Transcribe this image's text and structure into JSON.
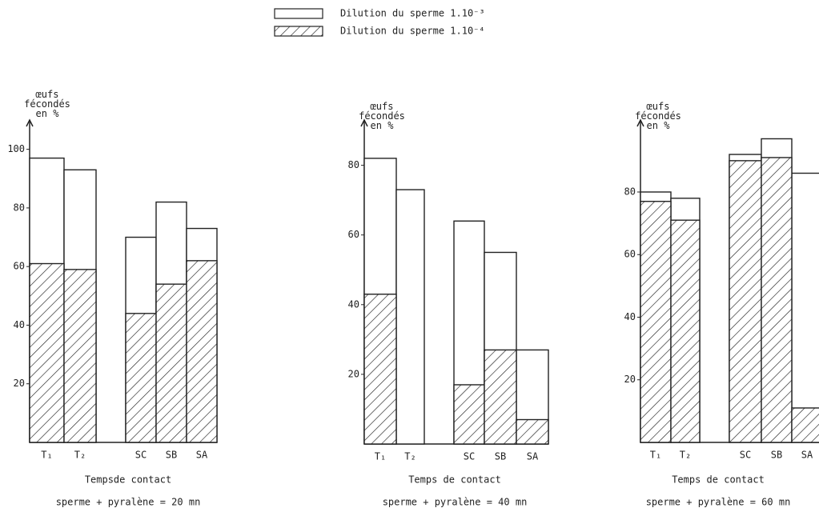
{
  "chart_data": [
    {
      "type": "bar",
      "overlap": true,
      "ylabel": "œufs fécondés en %",
      "xlabel": [
        "Tempsde contact",
        "sperme + pyralène = 20 mn"
      ],
      "categories": [
        "T₁",
        "T₂",
        "SC",
        "SB",
        "SA"
      ],
      "series": [
        {
          "name": "Dilution du sperme 1.10⁻³",
          "color": "#ffffff",
          "values": [
            97,
            93,
            70,
            82,
            73
          ]
        },
        {
          "name": "Dilution du sperme 1.10⁻⁴",
          "color": "#222222",
          "hatch": true,
          "values": [
            61,
            59,
            44,
            54,
            62
          ]
        }
      ],
      "ylim": [
        0,
        110
      ],
      "yticks": [
        20,
        40,
        60,
        80,
        100
      ]
    },
    {
      "type": "bar",
      "overlap": true,
      "ylabel": "œufs fécondés en %",
      "xlabel": [
        "Temps de contact",
        "sperme + pyralène = 40 mn"
      ],
      "categories": [
        "T₁",
        "T₂",
        "SC",
        "SB",
        "SA"
      ],
      "series": [
        {
          "name": "Dilution du sperme 1.10⁻³",
          "color": "#ffffff",
          "values": [
            82,
            73,
            64,
            55,
            27
          ]
        },
        {
          "name": "Dilution du sperme 1.10⁻⁴",
          "color": "#222222",
          "hatch": true,
          "values": [
            43,
            null,
            17,
            27,
            7
          ]
        }
      ],
      "ylim": [
        0,
        93
      ],
      "yticks": [
        20,
        40,
        60,
        80
      ]
    },
    {
      "type": "bar",
      "overlap": true,
      "ylabel": "œufs fécondés en %",
      "xlabel": [
        "Temps de contact",
        "sperme + pyralène = 60 mn"
      ],
      "categories": [
        "T₁",
        "T₂",
        "SC",
        "SB",
        "SA"
      ],
      "series": [
        {
          "name": "Dilution du sperme 1.10⁻³",
          "color": "#ffffff",
          "values": [
            80,
            78,
            92,
            97,
            86
          ]
        },
        {
          "name": "Dilution du sperme 1.10⁻⁴",
          "color": "#222222",
          "hatch": true,
          "values": [
            77,
            71,
            90,
            91,
            11
          ]
        }
      ],
      "ylim": [
        0,
        103
      ],
      "yticks": [
        20,
        40,
        60,
        80
      ]
    }
  ]
}
